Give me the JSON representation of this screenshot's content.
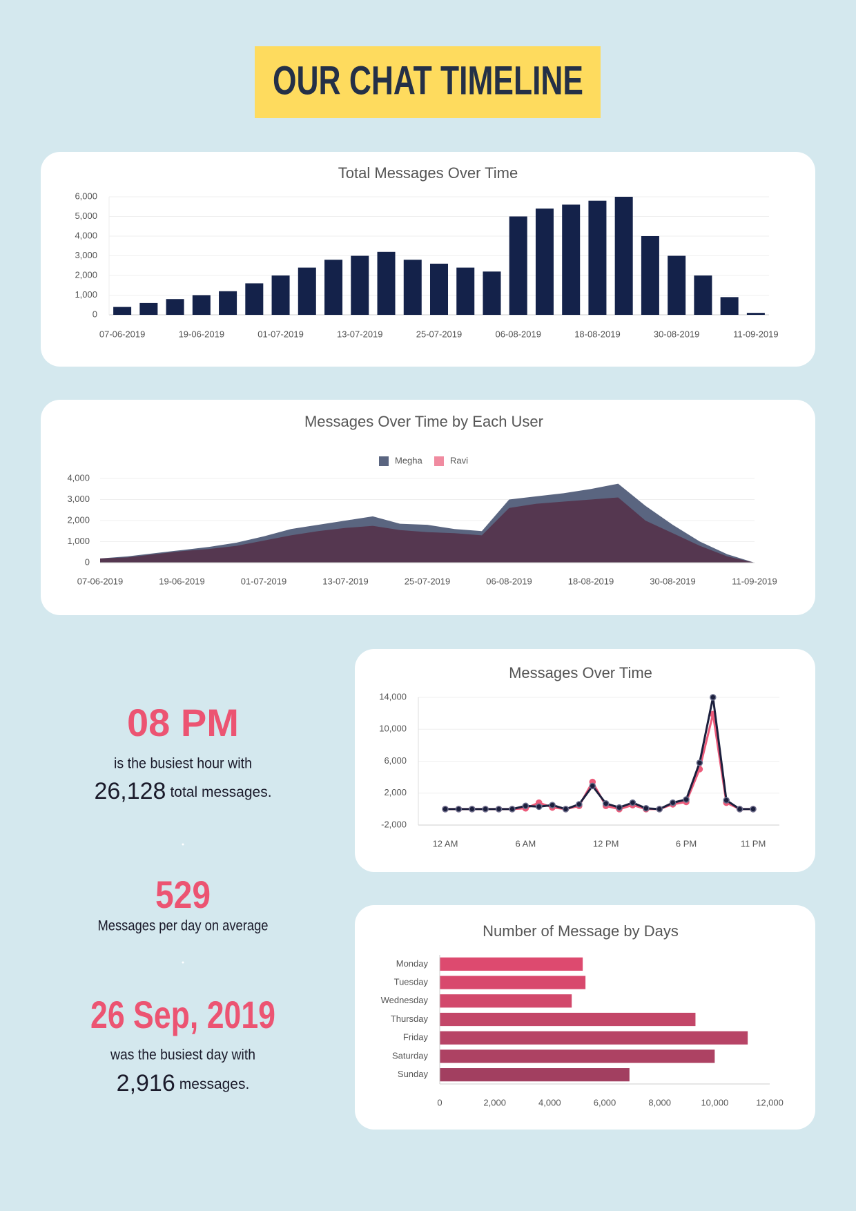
{
  "title": "OUR CHAT TIMELINE",
  "chart_data": [
    {
      "type": "bar",
      "title": "Total Messages Over Time",
      "categories": [
        "07-06-2019",
        null,
        null,
        "19-06-2019",
        null,
        null,
        "01-07-2019",
        null,
        null,
        "13-07-2019",
        null,
        null,
        "25-07-2019",
        null,
        null,
        "06-08-2019",
        null,
        null,
        "18-08-2019",
        null,
        null,
        "30-08-2019",
        null,
        null,
        "11-09-2019"
      ],
      "values": [
        400,
        600,
        800,
        1000,
        1200,
        1600,
        2000,
        2400,
        2800,
        3000,
        3200,
        2800,
        2600,
        2400,
        2200,
        5000,
        5400,
        5600,
        5800,
        6000,
        4000,
        3000,
        2000,
        900,
        100
      ],
      "color": "#14224a",
      "ylim": [
        0,
        6000
      ],
      "yticks": [
        0,
        {
          "value": 1000,
          "label": "1,000"
        },
        {
          "value": 2000,
          "label": "2,000"
        },
        {
          "value": 3000,
          "label": "3,000"
        },
        {
          "value": 4000,
          "label": "4,000"
        },
        {
          "value": 5000,
          "label": "5,000"
        },
        {
          "value": 6000,
          "label": "6,000"
        }
      ],
      "grid": true
    },
    {
      "type": "area",
      "title": "Messages Over Time by Each User",
      "categories": [
        "07-06-2019",
        null,
        null,
        "19-06-2019",
        null,
        null,
        "01-07-2019",
        null,
        null,
        "13-07-2019",
        null,
        null,
        "25-07-2019",
        null,
        null,
        "06-08-2019",
        null,
        null,
        "18-08-2019",
        null,
        null,
        "30-08-2019",
        null,
        null,
        "11-09-2019"
      ],
      "series": [
        {
          "name": "Megha",
          "color": "#5a6580",
          "values": [
            200,
            300,
            450,
            600,
            750,
            950,
            1250,
            1600,
            1800,
            2000,
            2200,
            1850,
            1800,
            1600,
            1500,
            3000,
            3150,
            3300,
            3500,
            3750,
            2700,
            1800,
            1000,
            400,
            0
          ]
        },
        {
          "name": "Ravi",
          "color": "#f08ba0",
          "values": [
            200,
            250,
            400,
            550,
            650,
            800,
            1050,
            1300,
            1500,
            1650,
            1750,
            1550,
            1450,
            1400,
            1300,
            2600,
            2800,
            2900,
            3000,
            3100,
            2000,
            1400,
            800,
            300,
            0
          ]
        }
      ],
      "ylim": [
        0,
        4000
      ],
      "yticks": [
        0,
        {
          "value": 1000,
          "label": "1,000"
        },
        {
          "value": 2000,
          "label": "2,000"
        },
        {
          "value": 3000,
          "label": "3,000"
        },
        {
          "value": 4000,
          "label": "4,000"
        }
      ],
      "grid": true,
      "legend": "top"
    },
    {
      "type": "line",
      "title": "Messages Over Time",
      "categories": [
        "12 AM",
        null,
        null,
        null,
        null,
        null,
        "6 AM",
        null,
        null,
        null,
        null,
        null,
        "12 PM",
        null,
        null,
        null,
        null,
        null,
        "6 PM",
        null,
        null,
        null,
        null,
        "11 PM"
      ],
      "series": [
        {
          "color": "#ec5b7a",
          "values": [
            0,
            0,
            0,
            0,
            0,
            0,
            100,
            800,
            200,
            0,
            400,
            3400,
            400,
            0,
            500,
            0,
            0,
            600,
            900,
            5000,
            11900,
            800,
            0,
            0
          ]
        },
        {
          "color": "#1c1f3d",
          "values": [
            0,
            0,
            0,
            0,
            0,
            0,
            400,
            300,
            500,
            0,
            600,
            2900,
            700,
            200,
            800,
            100,
            0,
            800,
            1200,
            5800,
            14000,
            1100,
            0,
            0
          ]
        }
      ],
      "ylim": [
        -2000,
        14000
      ],
      "yticks": [
        {
          "value": -2000,
          "label": "-2,000"
        },
        {
          "value": 2000,
          "label": "2,000"
        },
        {
          "value": 6000,
          "label": "6,000"
        },
        {
          "value": 10000,
          "label": "10,000"
        },
        {
          "value": 14000,
          "label": "14,000"
        }
      ],
      "grid": true
    },
    {
      "type": "barh",
      "title": "Number of Message by Days",
      "categories": [
        "Monday",
        "Tuesday",
        "Wednesday",
        "Thursday",
        "Friday",
        "Saturday",
        "Sunday"
      ],
      "values": [
        5200,
        5300,
        4800,
        9300,
        11200,
        10000,
        6900
      ],
      "colors": [
        "#dd4a6f",
        "#d8496d",
        "#d2486b",
        "#c34668",
        "#b74466",
        "#ad4263",
        "#a23f60"
      ],
      "xlim": [
        0,
        12000
      ],
      "xticks": [
        0,
        {
          "value": 2000,
          "label": "2,000"
        },
        {
          "value": 4000,
          "label": "4,000"
        },
        {
          "value": 6000,
          "label": "6,000"
        },
        {
          "value": 8000,
          "label": "8,000"
        },
        {
          "value": 10000,
          "label": "10,000"
        },
        {
          "value": 12000,
          "label": "12,000"
        }
      ],
      "grid": false
    }
  ],
  "stats": [
    {
      "headline": "08 PM",
      "line": "is the busiest hour with",
      "number": "26,128",
      "suffix": "total messages."
    },
    {
      "headline": "529",
      "line": "Messages per day on average"
    },
    {
      "headline": "26 Sep, 2019",
      "line": "was the busiest day with",
      "number": "2,916",
      "suffix": "messages."
    }
  ]
}
